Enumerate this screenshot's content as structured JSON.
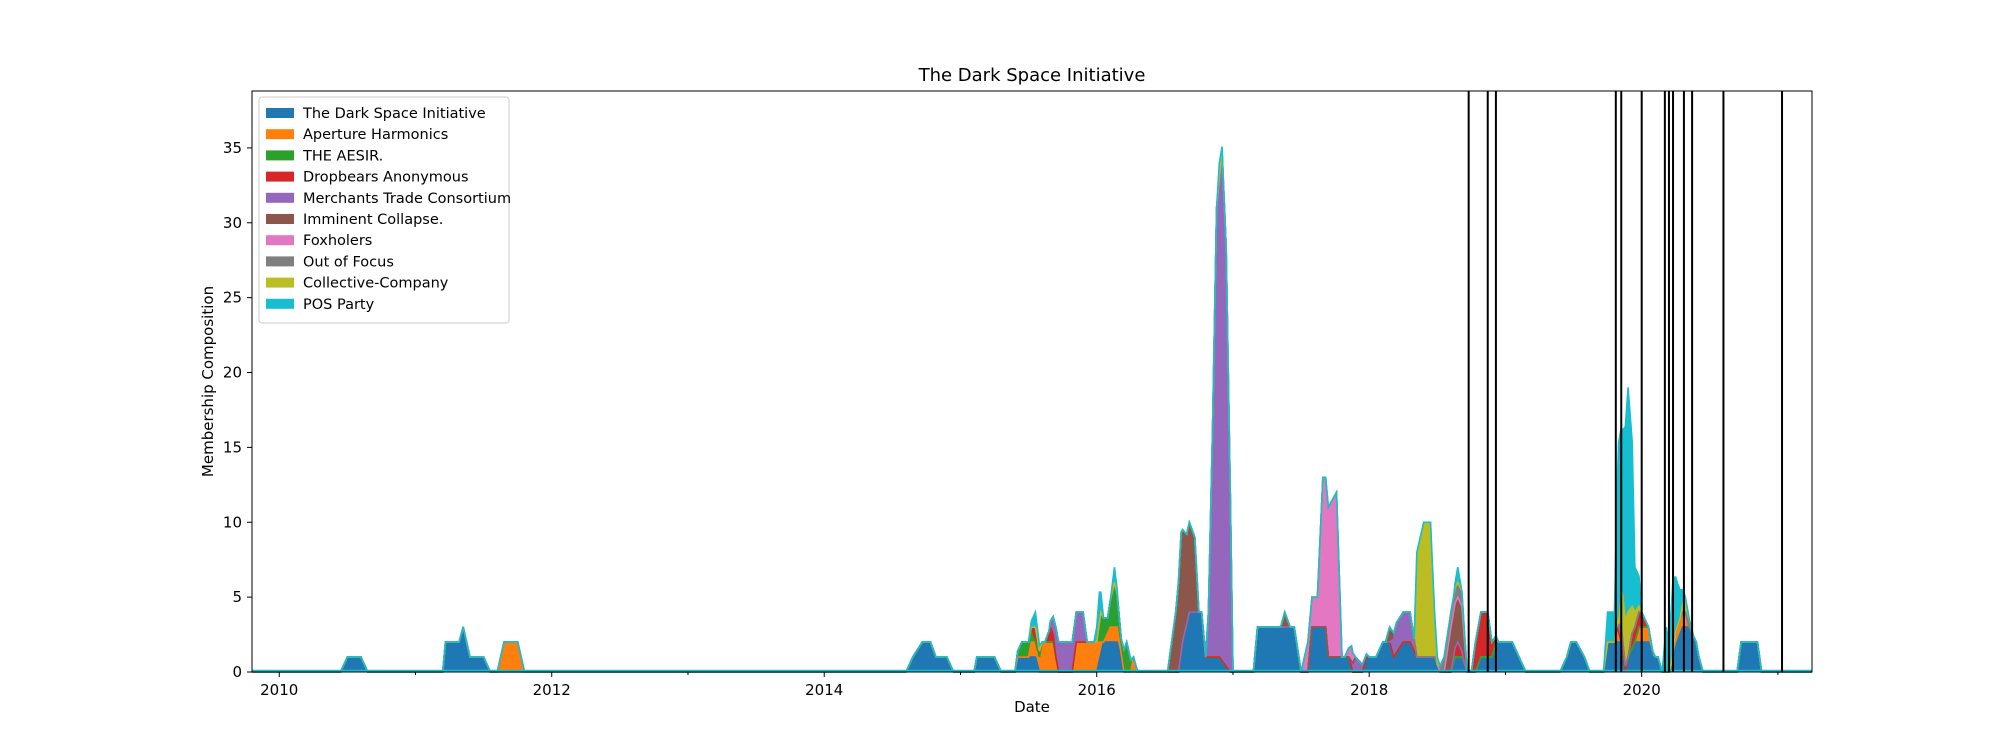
{
  "chart_data": {
    "type": "area",
    "stacked": true,
    "title": "The Dark Space Initiative",
    "xlabel": "Date",
    "ylabel": "Membership Composition",
    "xlim": [
      2009.8,
      2021.25
    ],
    "ylim": [
      0,
      38.8
    ],
    "x_ticks": [
      "2010",
      "2012",
      "2014",
      "2016",
      "2018",
      "2020"
    ],
    "y_ticks": [
      "0",
      "5",
      "10",
      "15",
      "20",
      "25",
      "30",
      "35"
    ],
    "grid": false,
    "legend_position": "upper-left",
    "series": [
      {
        "name": "The Dark Space Initiative",
        "color": "#1f77b4",
        "points": [
          [
            2010.45,
            0
          ],
          [
            2010.5,
            1
          ],
          [
            2010.6,
            1
          ],
          [
            2010.65,
            0
          ],
          [
            2011.2,
            0
          ],
          [
            2011.22,
            2
          ],
          [
            2011.32,
            2
          ],
          [
            2011.35,
            3
          ],
          [
            2011.4,
            1
          ],
          [
            2011.5,
            1
          ],
          [
            2011.55,
            0
          ],
          [
            2014.6,
            0
          ],
          [
            2014.65,
            1
          ],
          [
            2014.72,
            2
          ],
          [
            2014.78,
            2
          ],
          [
            2014.82,
            1
          ],
          [
            2014.9,
            1
          ],
          [
            2014.95,
            0
          ],
          [
            2015.1,
            0
          ],
          [
            2015.12,
            1
          ],
          [
            2015.25,
            1
          ],
          [
            2015.3,
            0
          ],
          [
            2015.4,
            0
          ],
          [
            2015.42,
            1
          ],
          [
            2015.55,
            1
          ],
          [
            2015.58,
            0
          ],
          [
            2015.9,
            0
          ],
          [
            2016.0,
            0
          ],
          [
            2016.05,
            2
          ],
          [
            2016.15,
            2
          ],
          [
            2016.2,
            0
          ],
          [
            2016.6,
            0
          ],
          [
            2016.63,
            2
          ],
          [
            2016.68,
            4
          ],
          [
            2016.77,
            4
          ],
          [
            2016.8,
            1
          ],
          [
            2016.85,
            1
          ],
          [
            2016.9,
            1
          ],
          [
            2016.98,
            0
          ],
          [
            2017.15,
            0
          ],
          [
            2017.18,
            3
          ],
          [
            2017.28,
            3
          ],
          [
            2017.35,
            3
          ],
          [
            2017.45,
            3
          ],
          [
            2017.5,
            0
          ],
          [
            2017.55,
            0
          ],
          [
            2017.58,
            3
          ],
          [
            2017.68,
            3
          ],
          [
            2017.7,
            1
          ],
          [
            2017.75,
            1
          ],
          [
            2017.85,
            1
          ],
          [
            2017.88,
            0
          ],
          [
            2017.95,
            0
          ],
          [
            2017.98,
            1
          ],
          [
            2018.05,
            1
          ],
          [
            2018.1,
            2
          ],
          [
            2018.15,
            2
          ],
          [
            2018.18,
            1
          ],
          [
            2018.25,
            2
          ],
          [
            2018.3,
            2
          ],
          [
            2018.35,
            1
          ],
          [
            2018.42,
            1
          ],
          [
            2018.48,
            1
          ],
          [
            2018.52,
            0
          ],
          [
            2018.6,
            0
          ],
          [
            2018.63,
            1
          ],
          [
            2018.68,
            1
          ],
          [
            2018.72,
            0
          ],
          [
            2018.78,
            0
          ],
          [
            2018.82,
            1
          ],
          [
            2018.9,
            1
          ],
          [
            2018.93,
            2
          ],
          [
            2018.98,
            2
          ],
          [
            2019.05,
            2
          ],
          [
            2019.1,
            1
          ],
          [
            2019.15,
            0
          ],
          [
            2019.4,
            0
          ],
          [
            2019.45,
            1
          ],
          [
            2019.48,
            2
          ],
          [
            2019.52,
            2
          ],
          [
            2019.58,
            1
          ],
          [
            2019.62,
            0
          ],
          [
            2019.72,
            0
          ],
          [
            2019.75,
            2
          ],
          [
            2019.85,
            2
          ],
          [
            2019.88,
            0
          ],
          [
            2019.9,
            1
          ],
          [
            2019.95,
            2
          ],
          [
            2020.0,
            2
          ],
          [
            2020.05,
            2
          ],
          [
            2020.08,
            1
          ],
          [
            2020.12,
            1
          ],
          [
            2020.15,
            0
          ],
          [
            2020.2,
            0
          ],
          [
            2020.23,
            1
          ],
          [
            2020.26,
            2
          ],
          [
            2020.3,
            3
          ],
          [
            2020.35,
            3
          ],
          [
            2020.4,
            2
          ],
          [
            2020.42,
            1
          ],
          [
            2020.45,
            0
          ],
          [
            2020.7,
            0
          ],
          [
            2020.73,
            2
          ],
          [
            2020.85,
            2
          ],
          [
            2020.88,
            0
          ],
          [
            2021.0,
            0
          ]
        ]
      },
      {
        "name": "Aperture Harmonics",
        "color": "#ff7f0e",
        "points": [
          [
            2011.6,
            0
          ],
          [
            2011.65,
            2
          ],
          [
            2011.75,
            2
          ],
          [
            2011.8,
            0
          ],
          [
            2015.5,
            0
          ],
          [
            2015.52,
            1
          ],
          [
            2015.58,
            1
          ],
          [
            2015.6,
            2
          ],
          [
            2015.68,
            2
          ],
          [
            2015.72,
            0
          ],
          [
            2015.82,
            0
          ],
          [
            2015.85,
            2
          ],
          [
            2016.0,
            2
          ],
          [
            2016.05,
            0
          ],
          [
            2016.1,
            1
          ],
          [
            2016.15,
            1
          ],
          [
            2016.2,
            0
          ],
          [
            2016.25,
            0
          ],
          [
            2016.27,
            1
          ],
          [
            2016.3,
            0
          ],
          [
            2019.8,
            0
          ],
          [
            2019.82,
            1
          ],
          [
            2019.85,
            0
          ],
          [
            2019.95,
            0
          ],
          [
            2019.98,
            1
          ],
          [
            2020.05,
            1
          ],
          [
            2020.1,
            0
          ],
          [
            2020.15,
            0
          ],
          [
            2020.22,
            0
          ],
          [
            2020.25,
            1
          ],
          [
            2020.32,
            1
          ],
          [
            2020.35,
            0
          ]
        ]
      },
      {
        "name": "THE AESIR.",
        "color": "#2ca02c",
        "points": [
          [
            2015.4,
            0
          ],
          [
            2015.45,
            1
          ],
          [
            2015.5,
            1
          ],
          [
            2015.55,
            0
          ],
          [
            2016.0,
            0
          ],
          [
            2016.03,
            2
          ],
          [
            2016.08,
            1
          ],
          [
            2016.13,
            3
          ],
          [
            2016.18,
            1
          ],
          [
            2016.22,
            2
          ],
          [
            2016.27,
            0
          ]
        ]
      },
      {
        "name": "Dropbears Anonymous",
        "color": "#d62728",
        "points": [
          [
            2015.5,
            0
          ],
          [
            2015.55,
            1
          ],
          [
            2015.6,
            0
          ],
          [
            2015.62,
            0
          ],
          [
            2015.66,
            1
          ],
          [
            2015.7,
            0
          ],
          [
            2018.6,
            0
          ],
          [
            2018.65,
            1
          ],
          [
            2018.7,
            0
          ],
          [
            2018.75,
            0
          ],
          [
            2018.78,
            2
          ],
          [
            2018.82,
            3
          ],
          [
            2018.87,
            3
          ],
          [
            2018.9,
            1
          ],
          [
            2018.95,
            0
          ],
          [
            2019.9,
            0
          ],
          [
            2019.93,
            1
          ],
          [
            2020.0,
            1
          ],
          [
            2020.05,
            0
          ]
        ]
      },
      {
        "name": "Merchants Trade Consortium",
        "color": "#9467bd",
        "points": [
          [
            2015.65,
            0
          ],
          [
            2015.7,
            2
          ],
          [
            2015.9,
            2
          ],
          [
            2015.93,
            0
          ],
          [
            2016.8,
            0
          ],
          [
            2016.82,
            3
          ],
          [
            2016.85,
            15
          ],
          [
            2016.88,
            30
          ],
          [
            2016.92,
            34
          ],
          [
            2016.95,
            28
          ],
          [
            2016.98,
            12
          ],
          [
            2017.0,
            0
          ],
          [
            2017.85,
            0
          ],
          [
            2017.9,
            1
          ],
          [
            2018.0,
            0
          ],
          [
            2018.15,
            0
          ],
          [
            2018.2,
            2
          ],
          [
            2018.3,
            2
          ],
          [
            2018.35,
            0
          ],
          [
            2019.8,
            0
          ],
          [
            2019.85,
            1
          ],
          [
            2019.9,
            0
          ]
        ]
      },
      {
        "name": "Imminent Collapse.",
        "color": "#8c564b",
        "points": [
          [
            2016.52,
            0
          ],
          [
            2016.58,
            4
          ],
          [
            2016.62,
            8
          ],
          [
            2016.66,
            6
          ],
          [
            2016.68,
            6
          ],
          [
            2016.72,
            5
          ],
          [
            2016.75,
            0
          ],
          [
            2017.35,
            0
          ],
          [
            2017.38,
            1
          ],
          [
            2017.42,
            0
          ],
          [
            2018.12,
            0
          ],
          [
            2018.15,
            1
          ],
          [
            2018.2,
            0
          ],
          [
            2018.55,
            0
          ],
          [
            2018.6,
            3
          ],
          [
            2018.68,
            3
          ],
          [
            2018.72,
            0
          ]
        ]
      },
      {
        "name": "Foxholers",
        "color": "#e377c2",
        "points": [
          [
            2017.5,
            0
          ],
          [
            2017.55,
            2
          ],
          [
            2017.62,
            2
          ],
          [
            2017.66,
            10
          ],
          [
            2017.7,
            10
          ],
          [
            2017.76,
            11
          ],
          [
            2017.8,
            0
          ],
          [
            2017.82,
            0
          ],
          [
            2017.87,
            1
          ],
          [
            2017.9,
            0
          ]
        ]
      },
      {
        "name": "Out of Focus",
        "color": "#7f7f7f",
        "points": [
          [
            2018.5,
            0
          ],
          [
            2018.55,
            1
          ],
          [
            2018.68,
            1
          ],
          [
            2018.72,
            0
          ]
        ]
      },
      {
        "name": "Collective-Company",
        "color": "#bcbd22",
        "points": [
          [
            2018.33,
            0
          ],
          [
            2018.35,
            7
          ],
          [
            2018.4,
            9
          ],
          [
            2018.45,
            9
          ],
          [
            2018.48,
            2
          ],
          [
            2018.5,
            0
          ],
          [
            2019.83,
            0
          ],
          [
            2019.86,
            3
          ],
          [
            2019.9,
            3
          ],
          [
            2019.95,
            1
          ],
          [
            2020.0,
            0
          ],
          [
            2020.28,
            0
          ],
          [
            2020.32,
            1
          ],
          [
            2020.38,
            0
          ]
        ]
      },
      {
        "name": "POS Party",
        "color": "#17becf",
        "points": [
          [
            2015.5,
            0
          ],
          [
            2015.55,
            1
          ],
          [
            2015.6,
            0
          ],
          [
            2015.98,
            0
          ],
          [
            2016.02,
            2
          ],
          [
            2016.05,
            0
          ],
          [
            2016.1,
            0
          ],
          [
            2016.13,
            1
          ],
          [
            2016.16,
            0
          ],
          [
            2016.88,
            0
          ],
          [
            2016.9,
            1
          ],
          [
            2016.93,
            0
          ],
          [
            2018.45,
            0
          ],
          [
            2018.48,
            1
          ],
          [
            2018.52,
            0
          ],
          [
            2018.62,
            0
          ],
          [
            2018.65,
            1
          ],
          [
            2018.68,
            0
          ],
          [
            2019.72,
            0
          ],
          [
            2019.75,
            2
          ],
          [
            2019.8,
            2
          ],
          [
            2019.83,
            12
          ],
          [
            2019.86,
            11
          ],
          [
            2019.9,
            15
          ],
          [
            2019.93,
            11
          ],
          [
            2019.95,
            3
          ],
          [
            2019.98,
            2
          ],
          [
            2020.0,
            0
          ],
          [
            2020.15,
            0
          ],
          [
            2020.18,
            3
          ],
          [
            2020.2,
            2
          ],
          [
            2020.23,
            5
          ],
          [
            2020.26,
            3
          ],
          [
            2020.3,
            1
          ],
          [
            2020.32,
            0
          ]
        ]
      }
    ],
    "baseline": {
      "name": "",
      "color": "#17becf",
      "x_range": [
        2009.8,
        2021.25
      ]
    },
    "event_lines_x": [
      2018.73,
      2018.87,
      2018.93,
      2019.81,
      2019.85,
      2020.0,
      2020.17,
      2020.2,
      2020.23,
      2020.31,
      2020.37,
      2020.6,
      2021.03
    ]
  }
}
